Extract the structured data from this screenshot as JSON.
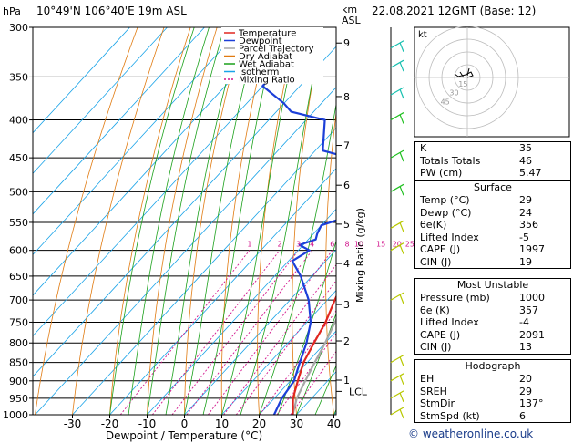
{
  "header": {
    "location": "10°49'N  106°40'E  19m  ASL",
    "datetime": "22.08.2021  12GMT  (Base: 12)",
    "hpa_label": "hPa",
    "km_label": "km",
    "asl_label": "ASL"
  },
  "legend": [
    "Temperature",
    "Dewpoint",
    "Parcel Trajectory",
    "Dry Adiabat",
    "Wet Adiabat",
    "Isotherm",
    "Mixing Ratio"
  ],
  "colors": {
    "temperature": "#e0271f",
    "dewpoint": "#1c3fd8",
    "parcel": "#a8a8a8",
    "dry_adiabat": "#e07a10",
    "wet_adiabat": "#1aa01a",
    "isotherm": "#19a3e8",
    "mixing_ratio": "#d2148c",
    "wind": "#b8c800",
    "wind_upper": "#18c0b0",
    "wind_mid": "#20c020",
    "footer": "#1a3c8a"
  },
  "chart_data": {
    "type": "line",
    "title": "",
    "xlabel": "Dewpoint / Temperature (°C)",
    "ylabel": "Mixing Ratio (g/kg)",
    "xlim": [
      -35,
      40
    ],
    "pressure_range": [
      1000,
      300
    ],
    "pressure_ticks": [
      300,
      350,
      400,
      450,
      500,
      550,
      600,
      650,
      700,
      750,
      800,
      850,
      900,
      950,
      1000
    ],
    "temp_ticks": [
      -30,
      -20,
      -10,
      0,
      10,
      20,
      30,
      40
    ],
    "km_ticks": [
      {
        "label": "9",
        "p": 315
      },
      {
        "label": "8",
        "p": 372
      },
      {
        "label": "7",
        "p": 433
      },
      {
        "label": "6",
        "p": 490
      },
      {
        "label": "5",
        "p": 553
      },
      {
        "label": "4",
        "p": 625
      },
      {
        "label": "3",
        "p": 710
      },
      {
        "label": "2",
        "p": 795
      },
      {
        "label": "1",
        "p": 898
      },
      {
        "label": "LCL",
        "p": 930
      }
    ],
    "mixing_ratio_labels": [
      "1",
      "2",
      "3",
      "4",
      "6",
      "8",
      "10",
      "15",
      "20",
      "25"
    ],
    "series": [
      {
        "name": "Temperature",
        "points": [
          [
            1000,
            29
          ],
          [
            950,
            25
          ],
          [
            900,
            22
          ],
          [
            850,
            19
          ],
          [
            800,
            17
          ],
          [
            750,
            15
          ],
          [
            700,
            12
          ],
          [
            650,
            9
          ],
          [
            600,
            6
          ],
          [
            550,
            3
          ],
          [
            500,
            -2
          ],
          [
            450,
            -7
          ],
          [
            400,
            -13
          ],
          [
            350,
            -20
          ],
          [
            300,
            -28
          ]
        ]
      },
      {
        "name": "Dewpoint",
        "points": [
          [
            1000,
            24
          ],
          [
            950,
            22
          ],
          [
            900,
            21
          ],
          [
            850,
            18
          ],
          [
            800,
            15
          ],
          [
            750,
            11
          ],
          [
            700,
            5
          ],
          [
            650,
            -3
          ],
          [
            620,
            -9
          ],
          [
            600,
            -7
          ],
          [
            590,
            -11
          ],
          [
            580,
            -8
          ],
          [
            570,
            -9
          ],
          [
            555,
            -10
          ],
          [
            540,
            -5
          ],
          [
            520,
            -6
          ],
          [
            505,
            -13
          ],
          [
            495,
            -8
          ],
          [
            480,
            -14
          ],
          [
            475,
            -17
          ],
          [
            468,
            -15
          ],
          [
            460,
            -15
          ],
          [
            450,
            -19
          ],
          [
            440,
            -28
          ],
          [
            400,
            -35
          ],
          [
            390,
            -46
          ],
          [
            380,
            -50
          ],
          [
            360,
            -60
          ],
          [
            340,
            -60
          ],
          [
            320,
            -69
          ],
          [
            305,
            -73
          ],
          [
            300,
            -75
          ]
        ]
      },
      {
        "name": "Parcel Trajectory",
        "points": [
          [
            1000,
            29
          ],
          [
            950,
            26
          ],
          [
            900,
            24
          ],
          [
            850,
            22
          ],
          [
            800,
            20
          ],
          [
            750,
            17.5
          ],
          [
            700,
            15
          ],
          [
            650,
            12
          ],
          [
            600,
            9
          ],
          [
            550,
            5
          ],
          [
            500,
            1
          ],
          [
            450,
            -4
          ],
          [
            400,
            -10
          ],
          [
            350,
            -17
          ],
          [
            300,
            -25
          ]
        ]
      }
    ]
  },
  "stats": {
    "rows": [
      {
        "label": "K",
        "value": "35"
      },
      {
        "label": "Totals Totals",
        "value": "46"
      },
      {
        "label": "PW (cm)",
        "value": "5.47"
      }
    ],
    "surface": {
      "title": "Surface",
      "rows": [
        {
          "label": "Temp (°C)",
          "value": "29"
        },
        {
          "label": "Dewp (°C)",
          "value": "24"
        },
        {
          "label": "θe(K)",
          "value": "356"
        },
        {
          "label": "Lifted Index",
          "value": "-5"
        },
        {
          "label": "CAPE (J)",
          "value": "1997"
        },
        {
          "label": "CIN (J)",
          "value": "19"
        }
      ]
    },
    "unstable": {
      "title": "Most Unstable",
      "rows": [
        {
          "label": "Pressure (mb)",
          "value": "1000"
        },
        {
          "label": "θe (K)",
          "value": "357"
        },
        {
          "label": "Lifted Index",
          "value": "-4"
        },
        {
          "label": "CAPE (J)",
          "value": "2091"
        },
        {
          "label": "CIN (J)",
          "value": "13"
        }
      ]
    },
    "hodograph": {
      "title": "Hodograph",
      "rows": [
        {
          "label": "EH",
          "value": "20"
        },
        {
          "label": "SREH",
          "value": "29"
        },
        {
          "label": "StmDir",
          "value": "137°"
        },
        {
          "label": "StmSpd (kt)",
          "value": "6"
        }
      ]
    }
  },
  "hodo": {
    "label": "kt",
    "ring_labels": [
      "15",
      "30",
      "45"
    ]
  },
  "footer": "© weatheronline.co.uk"
}
